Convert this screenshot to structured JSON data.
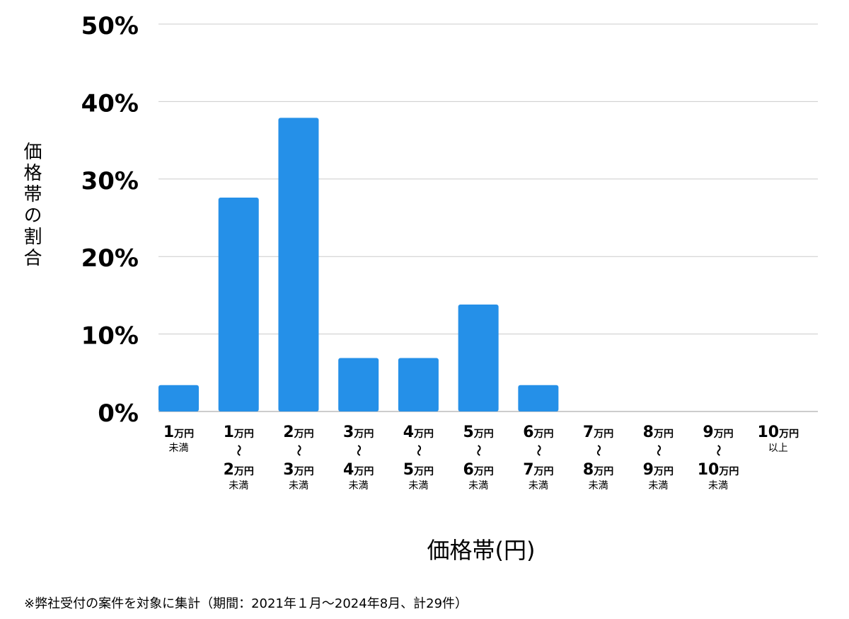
{
  "chart_data": {
    "type": "bar",
    "ylabel": "価格帯の割合",
    "xlabel": "価格帯(円)",
    "ylim": [
      0,
      50
    ],
    "yticks": [
      "0%",
      "10%",
      "20%",
      "30%",
      "40%",
      "50%"
    ],
    "grid": true,
    "bar_color": "#2590e8",
    "categories": [
      {
        "top": "1",
        "top_unit": "万円",
        "sep": "",
        "bottom": "",
        "bottom_unit": "",
        "suffix": "未満"
      },
      {
        "top": "1",
        "top_unit": "万円",
        "sep": "〜",
        "bottom": "2",
        "bottom_unit": "万円",
        "suffix": "未満"
      },
      {
        "top": "2",
        "top_unit": "万円",
        "sep": "〜",
        "bottom": "3",
        "bottom_unit": "万円",
        "suffix": "未満"
      },
      {
        "top": "3",
        "top_unit": "万円",
        "sep": "〜",
        "bottom": "4",
        "bottom_unit": "万円",
        "suffix": "未満"
      },
      {
        "top": "4",
        "top_unit": "万円",
        "sep": "〜",
        "bottom": "5",
        "bottom_unit": "万円",
        "suffix": "未満"
      },
      {
        "top": "5",
        "top_unit": "万円",
        "sep": "〜",
        "bottom": "6",
        "bottom_unit": "万円",
        "suffix": "未満"
      },
      {
        "top": "6",
        "top_unit": "万円",
        "sep": "〜",
        "bottom": "7",
        "bottom_unit": "万円",
        "suffix": "未満"
      },
      {
        "top": "7",
        "top_unit": "万円",
        "sep": "〜",
        "bottom": "8",
        "bottom_unit": "万円",
        "suffix": "未満"
      },
      {
        "top": "8",
        "top_unit": "万円",
        "sep": "〜",
        "bottom": "9",
        "bottom_unit": "万円",
        "suffix": "未満"
      },
      {
        "top": "9",
        "top_unit": "万円",
        "sep": "〜",
        "bottom": "10",
        "bottom_unit": "万円",
        "suffix": "未満"
      },
      {
        "top": "10",
        "top_unit": "万円",
        "sep": "",
        "bottom": "",
        "bottom_unit": "",
        "suffix": "以上"
      }
    ],
    "values": [
      3.4,
      27.6,
      37.9,
      6.9,
      6.9,
      13.8,
      3.4,
      0,
      0,
      0,
      0
    ]
  },
  "footnote": "※弊社受付の案件を対象に集計（期間：2021年１月〜2024年8月、計29件）"
}
